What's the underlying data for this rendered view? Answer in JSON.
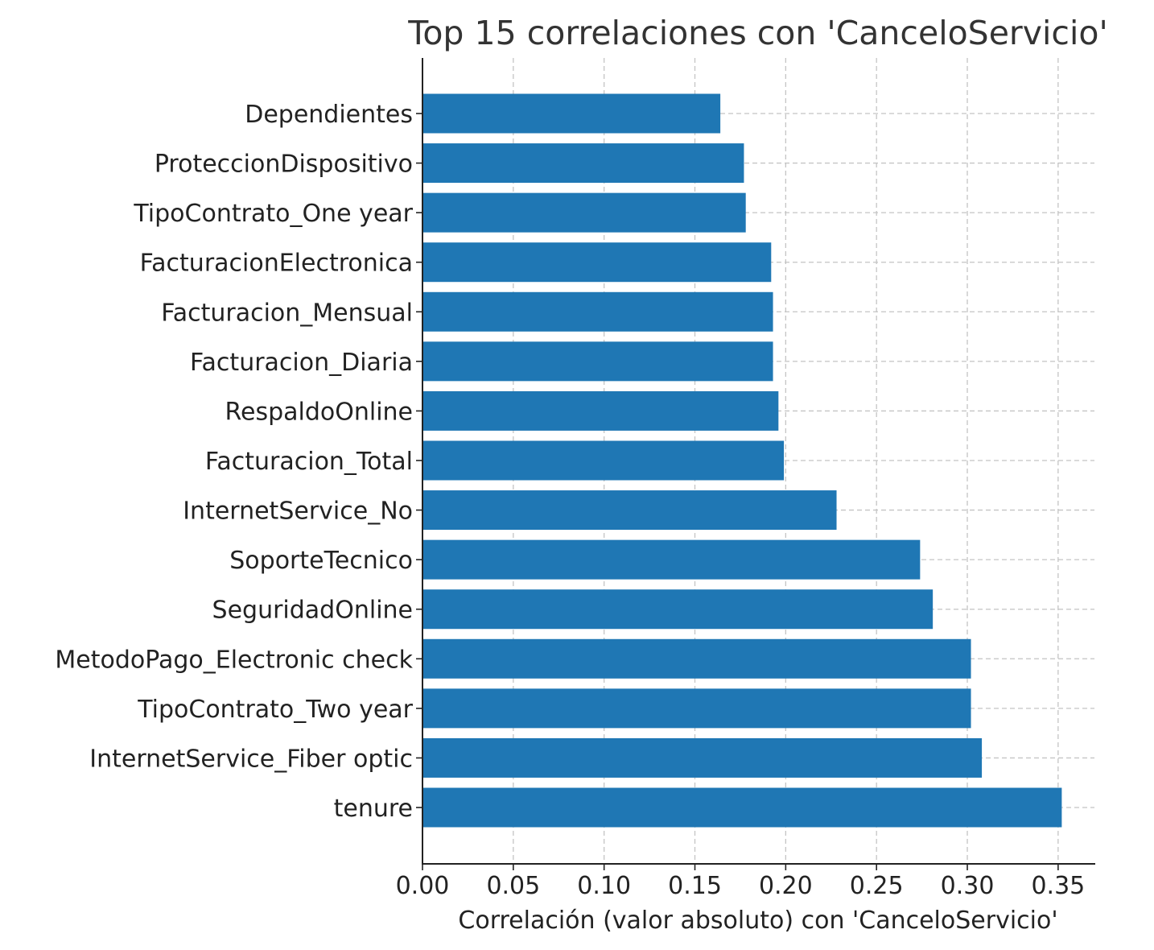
{
  "chart_data": {
    "type": "bar",
    "orientation": "horizontal",
    "title": "Top 15 correlaciones con 'CanceloServicio'",
    "xlabel": "Correlación (valor absoluto) con 'CanceloServicio'",
    "ylabel": "",
    "xlim": [
      0,
      0.37
    ],
    "xticks": [
      "0.00",
      "0.05",
      "0.10",
      "0.15",
      "0.20",
      "0.25",
      "0.30",
      "0.35"
    ],
    "xtick_values": [
      0,
      0.05,
      0.1,
      0.15,
      0.2,
      0.25,
      0.3,
      0.35
    ],
    "grid": true,
    "bar_color": "#1f77b4",
    "categories": [
      "Dependientes",
      "ProteccionDispositivo",
      "TipoContrato_One year",
      "FacturacionElectronica",
      "Facturacion_Mensual",
      "Facturacion_Diaria",
      "RespaldoOnline",
      "Facturacion_Total",
      "InternetService_No",
      "SoporteTecnico",
      "SeguridadOnline",
      "MetodoPago_Electronic check",
      "TipoContrato_Two year",
      "InternetService_Fiber optic",
      "tenure"
    ],
    "values": [
      0.164,
      0.177,
      0.178,
      0.192,
      0.193,
      0.193,
      0.196,
      0.199,
      0.228,
      0.274,
      0.281,
      0.302,
      0.302,
      0.308,
      0.352
    ]
  }
}
